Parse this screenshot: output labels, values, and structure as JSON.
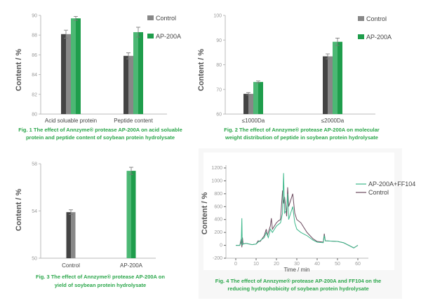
{
  "colors": {
    "control_dark": "#444444",
    "control_light": "#888888",
    "ap_light": "#4cb874",
    "ap_dark": "#1f9d4c",
    "line_control": "#6b4a5e",
    "line_ap": "#3cb88a",
    "caption": "#2aa64a"
  },
  "chart_data": [
    {
      "type": "bar",
      "categories": [
        "Acid soluable protein",
        "Peptide content"
      ],
      "series": [
        {
          "name": "Control",
          "values": [
            88.1,
            85.9
          ],
          "errors": [
            0.4,
            0.3
          ]
        },
        {
          "name": "AP-200A",
          "values": [
            89.7,
            88.3
          ],
          "errors": [
            0.2,
            0.5
          ]
        }
      ],
      "ylabel": "Content / %",
      "ylim": [
        80,
        90
      ],
      "yticks": [
        "80",
        "82",
        "84",
        "86",
        "88",
        "90"
      ],
      "legend": "top-right",
      "caption": [
        "Fig. 1  The effect of Annzyme® protease AP-200A on acid soluable",
        "protein and peptide content of soybean protein hydrolysate"
      ]
    },
    {
      "type": "bar",
      "categories": [
        "≤1000Da",
        "≤2000Da"
      ],
      "series": [
        {
          "name": "Control",
          "values": [
            68.2,
            83.4
          ],
          "errors": [
            0.5,
            1.0
          ]
        },
        {
          "name": "AP-200A",
          "values": [
            73.0,
            89.3
          ],
          "errors": [
            0.4,
            1.5
          ]
        }
      ],
      "ylabel": "Content / %",
      "ylim": [
        60,
        100
      ],
      "yticks": [
        "60",
        "70",
        "80",
        "90",
        "100"
      ],
      "legend": "top-right",
      "caption": [
        "Fig. 2  The effect of Annzyme® protease AP-200A on molecular",
        "weight distribution of peptide in soybean protein hydrolysate"
      ]
    },
    {
      "type": "bar",
      "categories": [
        "Control",
        "AP-200A"
      ],
      "series": [
        {
          "values": [
            53.9,
            57.4
          ],
          "errors": [
            0.2,
            0.3
          ]
        }
      ],
      "ylabel": "Content / %",
      "ylim": [
        50,
        58
      ],
      "yticks": [
        "50",
        "54",
        "58"
      ],
      "caption": [
        "Fig. 3  The effect of Annzyme® protease AP-200A on",
        "yield of soybean protein hydrolysate"
      ]
    },
    {
      "type": "line",
      "xlabel": "Time / min",
      "ylabel": "Content / %",
      "xlim": [
        -5,
        65
      ],
      "ylim": [
        -200,
        1250
      ],
      "xticks": [
        "0",
        "10",
        "20",
        "30",
        "40",
        "50",
        "60"
      ],
      "yticks": [
        "-200",
        "0",
        "200",
        "400",
        "600",
        "800",
        "1000",
        "1200"
      ],
      "legend": "top-right",
      "series": [
        {
          "name": "AP-200A+FF104",
          "x": [
            0,
            2,
            2.7,
            3,
            3.2,
            3.5,
            5,
            8,
            10,
            11,
            14,
            15,
            16,
            17,
            18,
            20,
            22,
            23,
            23.5,
            24,
            25,
            25.5,
            26,
            27,
            28,
            29,
            30,
            32,
            35,
            38,
            40,
            43,
            43.5,
            44,
            50,
            53,
            58,
            60
          ],
          "y": [
            0,
            0,
            50,
            420,
            0,
            20,
            30,
            10,
            20,
            50,
            120,
            200,
            120,
            250,
            200,
            300,
            350,
            500,
            1120,
            500,
            550,
            800,
            400,
            500,
            600,
            350,
            250,
            200,
            150,
            80,
            50,
            40,
            150,
            70,
            60,
            40,
            -40,
            0
          ]
        },
        {
          "name": "Control",
          "x": [
            0,
            2,
            2.7,
            3,
            3.3,
            3.6,
            5,
            8,
            10,
            11,
            12,
            14,
            15,
            15.5,
            17,
            17.5,
            18,
            20,
            21,
            22,
            23,
            23.5,
            24,
            25,
            25.5,
            26,
            27,
            28,
            28.5,
            29,
            30,
            32,
            35,
            38,
            40,
            43,
            43.5,
            44,
            50,
            53,
            58,
            60
          ],
          "y": [
            0,
            0,
            100,
            -30,
            120,
            20,
            30,
            10,
            20,
            70,
            60,
            150,
            250,
            150,
            300,
            420,
            250,
            350,
            380,
            400,
            850,
            650,
            750,
            450,
            900,
            600,
            700,
            800,
            650,
            500,
            400,
            350,
            200,
            100,
            60,
            50,
            180,
            70,
            60,
            40,
            -40,
            0
          ]
        }
      ],
      "caption": [
        "Fig. 4  The effect of Annzyme® protease AP-200A  and FF104 on the",
        "reducing hydrophobicity of soybean protein hydrolysate"
      ]
    }
  ]
}
